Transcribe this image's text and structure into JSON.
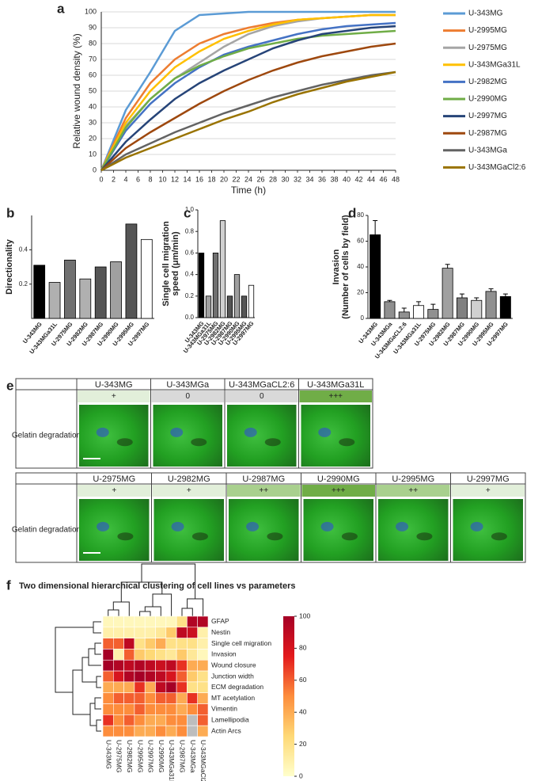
{
  "chart_data": [
    {
      "type": "line",
      "panel": "a",
      "xlabel": "Time (h)",
      "ylabel": "Relative wound density (%)",
      "x": [
        0,
        4,
        8,
        12,
        16,
        20,
        24,
        28,
        32,
        36,
        40,
        44,
        48
      ],
      "xlim": [
        0,
        48
      ],
      "ylim": [
        0,
        100
      ],
      "xticks": [
        0,
        2,
        4,
        6,
        8,
        10,
        12,
        14,
        16,
        18,
        20,
        22,
        24,
        26,
        28,
        30,
        32,
        34,
        36,
        38,
        40,
        42,
        44,
        46,
        48
      ],
      "yticks": [
        0,
        10,
        20,
        30,
        40,
        50,
        60,
        70,
        80,
        90,
        100
      ],
      "grid": true,
      "series": [
        {
          "name": "U-343MG",
          "color": "#5b9bd5",
          "values": [
            0,
            38,
            62,
            88,
            98,
            99,
            100,
            100,
            100,
            100,
            100,
            100,
            100
          ]
        },
        {
          "name": "U-2995MG",
          "color": "#ed7d31",
          "values": [
            0,
            33,
            55,
            70,
            80,
            86,
            90,
            93,
            95,
            96,
            97,
            98,
            98
          ]
        },
        {
          "name": "U-2975MG",
          "color": "#a5a5a5",
          "values": [
            0,
            28,
            45,
            58,
            68,
            78,
            86,
            91,
            94,
            96,
            97,
            98,
            98
          ]
        },
        {
          "name": "U-343MGa31L",
          "color": "#ffc000",
          "values": [
            0,
            30,
            50,
            65,
            75,
            83,
            88,
            92,
            95,
            96,
            97,
            98,
            98
          ]
        },
        {
          "name": "U-2982MG",
          "color": "#4472c4",
          "values": [
            0,
            25,
            42,
            55,
            65,
            73,
            78,
            82,
            86,
            89,
            91,
            92,
            93
          ]
        },
        {
          "name": "U-2990MG",
          "color": "#70ad47",
          "values": [
            0,
            27,
            45,
            58,
            66,
            72,
            77,
            80,
            83,
            85,
            86,
            87,
            88
          ]
        },
        {
          "name": "U-2997MG",
          "color": "#264478",
          "values": [
            0,
            18,
            32,
            45,
            55,
            63,
            70,
            77,
            82,
            86,
            88,
            90,
            91
          ]
        },
        {
          "name": "U-2987MG",
          "color": "#9e480e",
          "values": [
            0,
            14,
            24,
            33,
            42,
            50,
            57,
            63,
            68,
            72,
            75,
            78,
            80
          ]
        },
        {
          "name": "U-343MGa",
          "color": "#636363",
          "values": [
            0,
            10,
            17,
            24,
            30,
            36,
            41,
            46,
            50,
            54,
            57,
            60,
            62
          ]
        },
        {
          "name": "U-343MGaCl2:6",
          "color": "#997300",
          "values": [
            0,
            8,
            14,
            20,
            26,
            32,
            37,
            43,
            48,
            52,
            56,
            59,
            62
          ]
        }
      ]
    },
    {
      "type": "bar",
      "panel": "b",
      "ylabel": [
        "Directionality"
      ],
      "categories": [
        "U-343MG",
        "U-343MGa31L",
        "U-2975MG",
        "U-2982MG",
        "U-2987MG",
        "U-2990MG",
        "U-2995MG",
        "U-2997MG"
      ],
      "values": [
        0.31,
        0.21,
        0.34,
        0.23,
        0.3,
        0.33,
        0.55,
        0.46
      ],
      "colors": [
        "#000000",
        "#b0b0b0",
        "#707070",
        "#b0b0b0",
        "#555555",
        "#a0a0a0",
        "#555555",
        "#ffffff"
      ],
      "ylim": [
        0,
        0.6
      ],
      "yticks": [
        0.2,
        0.4
      ]
    },
    {
      "type": "bar",
      "panel": "c",
      "ylabel": [
        "Single cell migration",
        "speed (μm/min)"
      ],
      "categories": [
        "U-343MG",
        "U-343MGa31L",
        "U-2975MG",
        "U-2982MG",
        "U-2987MG",
        "U-2990MG",
        "U-2995MG",
        "U-2997MG"
      ],
      "values": [
        0.6,
        0.2,
        0.6,
        0.9,
        0.2,
        0.4,
        0.2,
        0.3
      ],
      "colors": [
        "#000000",
        "#a0a0a0",
        "#707070",
        "#d0d0d0",
        "#555555",
        "#a0a0a0",
        "#555555",
        "#ffffff"
      ],
      "ylim": [
        0,
        1
      ],
      "yticks": [
        {
          "value": 0,
          "label": "0.0"
        },
        0.2,
        0.4,
        0.6,
        0.8,
        {
          "value": 1,
          "label": "1.0"
        }
      ]
    },
    {
      "type": "bar",
      "panel": "d",
      "ylabel": [
        "Invasion",
        "(Number of cells by field)"
      ],
      "categories": [
        "U-343MG",
        "U-343MGa",
        "U-343MGaCL2:6",
        "U-343MGa31L",
        "U-2975MG",
        "U-2982MG",
        "U-2987MG",
        "U-2990MG",
        "U-2995MG",
        "U-2997MG"
      ],
      "values": [
        65,
        13,
        5,
        10,
        7,
        39,
        16,
        14,
        21,
        17
      ],
      "errors": [
        11,
        1,
        3,
        3,
        4,
        3,
        3,
        2,
        2,
        2
      ],
      "colors": [
        "#000000",
        "#909090",
        "#909090",
        "#ffffff",
        "#909090",
        "#a0a0a0",
        "#808080",
        "#d0d0d0",
        "#909090",
        "#000000"
      ],
      "ylim": [
        0,
        80
      ],
      "yticks": [
        0,
        20,
        40,
        60,
        80
      ]
    },
    {
      "type": "heatmap",
      "panel": "f",
      "title": "Two dimensional hierarchical clustering of cell lines vs parameters",
      "columns": [
        "U-343MG",
        "U-2975MG",
        "U-2982MG",
        "U-2995MG",
        "U-2997MG",
        "U-2990MG",
        "U-343MGa31L",
        "U-2987MG",
        "U-343MGa",
        "U-343MGaCl2:6"
      ],
      "rows": [
        "GFAP",
        "Nestin",
        "Single cell migration",
        "Invasion",
        "Wound closure",
        "Junction width",
        "ECM degradation",
        "MT acetylation",
        "Vimentin",
        "Lamellipodia",
        "Actin Arcs"
      ],
      "values": [
        [
          5,
          5,
          5,
          5,
          5,
          5,
          5,
          20,
          95,
          95
        ],
        [
          10,
          10,
          10,
          10,
          10,
          15,
          30,
          90,
          85,
          10
        ],
        [
          60,
          60,
          90,
          20,
          30,
          40,
          20,
          20,
          20,
          10
        ],
        [
          100,
          10,
          60,
          30,
          25,
          20,
          15,
          30,
          15,
          5
        ],
        [
          100,
          95,
          90,
          95,
          90,
          85,
          90,
          70,
          40,
          40
        ],
        [
          60,
          80,
          95,
          100,
          95,
          90,
          80,
          60,
          30,
          20
        ],
        [
          40,
          40,
          40,
          70,
          40,
          90,
          100,
          70,
          20,
          20
        ],
        [
          50,
          60,
          60,
          60,
          50,
          60,
          60,
          40,
          70,
          40
        ],
        [
          50,
          50,
          50,
          60,
          50,
          50,
          50,
          40,
          50,
          60
        ],
        [
          70,
          50,
          60,
          50,
          40,
          40,
          50,
          50,
          null,
          60
        ],
        [
          50,
          50,
          50,
          40,
          40,
          50,
          40,
          50,
          null,
          40
        ]
      ],
      "clim": [
        0,
        100
      ],
      "colorbar_ticks": [
        0,
        20,
        40,
        60,
        80,
        100
      ],
      "colormap": [
        "#ffffcc",
        "#fed976",
        "#fd8d3c",
        "#e31a1c",
        "#a50026"
      ],
      "missing_color": "#bdbdbd"
    }
  ],
  "panel_e": {
    "panel": "e",
    "row_label": "Gelatin degradation",
    "tables": [
      {
        "cells": [
          {
            "name": "U-343MG",
            "score": "+",
            "color": "#e2efda"
          },
          {
            "name": "U-343MGa",
            "score": "0",
            "color": "#d9d9d9"
          },
          {
            "name": "U-343MGaCL2:6",
            "score": "0",
            "color": "#d9d9d9"
          },
          {
            "name": "U-343MGa31L",
            "score": "+++",
            "color": "#70ad47"
          }
        ]
      },
      {
        "cells": [
          {
            "name": "U-2975MG",
            "score": "+",
            "color": "#e2efda"
          },
          {
            "name": "U-2982MG",
            "score": "+",
            "color": "#e2efda"
          },
          {
            "name": "U-2987MG",
            "score": "++",
            "color": "#a9d08e"
          },
          {
            "name": "U-2990MG",
            "score": "+++",
            "color": "#70ad47"
          },
          {
            "name": "U-2995MG",
            "score": "++",
            "color": "#a9d08e"
          },
          {
            "name": "U-2997MG",
            "score": "+",
            "color": "#e2efda"
          }
        ]
      }
    ]
  }
}
